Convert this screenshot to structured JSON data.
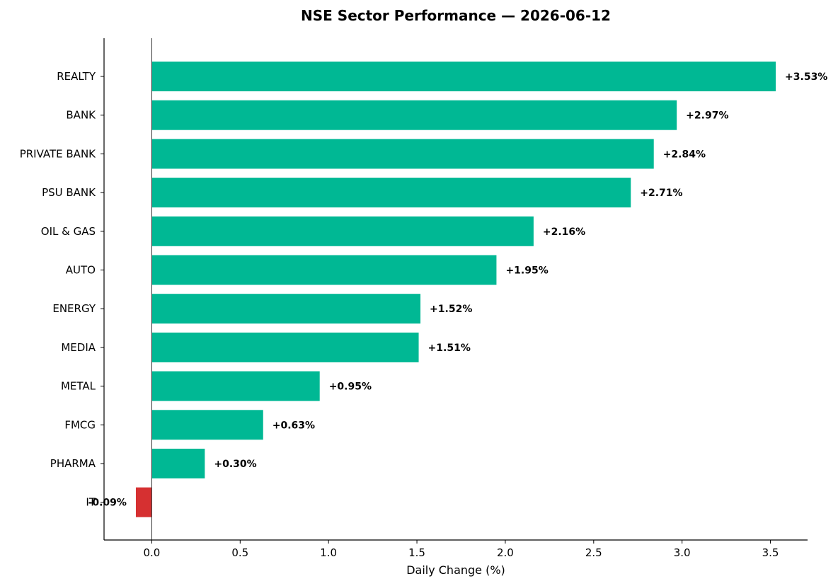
{
  "chart_data": {
    "type": "bar",
    "orientation": "horizontal",
    "title": "NSE Sector Performance — 2026-06-12",
    "xlabel": "Daily Change (%)",
    "ylabel": "",
    "xlim": [
      -0.27,
      3.71
    ],
    "xticks": [
      "0.0",
      "0.5",
      "1.0",
      "1.5",
      "2.0",
      "2.5",
      "3.0",
      "3.5"
    ],
    "grid": false,
    "legend": "none",
    "colors": {
      "positive": "#00b894",
      "negative": "#d63031"
    },
    "categories": [
      "REALTY",
      "BANK",
      "PRIVATE BANK",
      "PSU BANK",
      "OIL & GAS",
      "AUTO",
      "ENERGY",
      "MEDIA",
      "METAL",
      "FMCG",
      "PHARMA",
      "IT"
    ],
    "values": [
      3.53,
      2.97,
      2.84,
      2.71,
      2.16,
      1.95,
      1.52,
      1.51,
      0.95,
      0.63,
      0.3,
      -0.09
    ],
    "data_labels": [
      "+3.53%",
      "+2.97%",
      "+2.84%",
      "+2.71%",
      "+2.16%",
      "+1.95%",
      "+1.52%",
      "+1.51%",
      "+0.95%",
      "+0.63%",
      "+0.30%",
      "-0.09%"
    ]
  }
}
